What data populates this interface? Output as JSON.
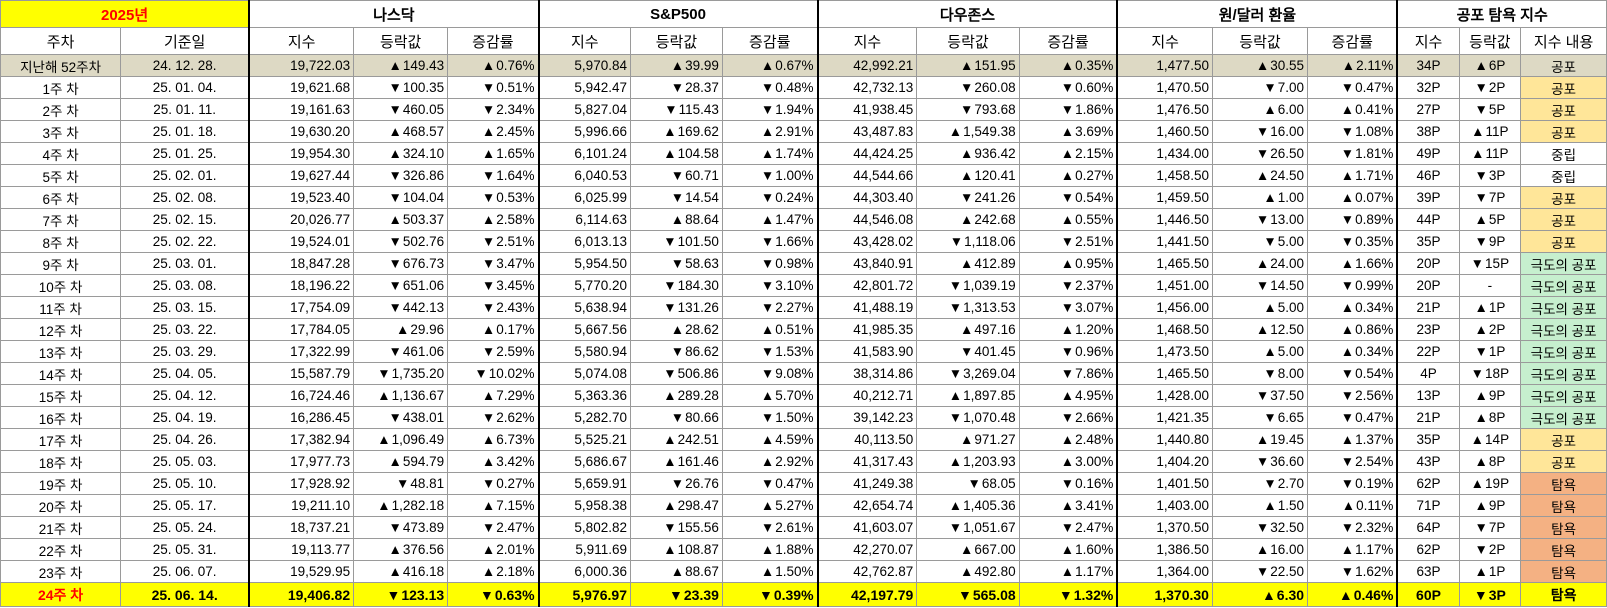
{
  "year_label": "2025년",
  "groups": [
    "나스닥",
    "S&P500",
    "다우존스",
    "원/달러 환율",
    "공포 탐욕 지수"
  ],
  "headers": {
    "week": "주차",
    "date": "기준일",
    "index": "지수",
    "change": "등락값",
    "rate": "증감률",
    "fg_index": "지수",
    "fg_change": "등락값",
    "fg_desc": "지수 내용"
  },
  "colors": {
    "up": "#ff0000",
    "down": "#0000ff",
    "highlight": "#ffff00",
    "prev_row": "#ddd9c4"
  },
  "rows": [
    {
      "week": "지난해 52주차",
      "date": "24. 12. 28.",
      "kind": "prev",
      "nasdaq": {
        "idx": "19,722.03",
        "chg": "149.43",
        "rate": "0.76%",
        "dir": "up"
      },
      "sp": {
        "idx": "5,970.84",
        "chg": "39.99",
        "rate": "0.67%",
        "dir": "up"
      },
      "dow": {
        "idx": "42,992.21",
        "chg": "151.95",
        "rate": "0.35%",
        "dir": "up"
      },
      "krw": {
        "idx": "1,477.50",
        "chg": "30.55",
        "rate": "2.11%",
        "dir": "up"
      },
      "fg": {
        "idx": "34P",
        "chg": "6P",
        "dir": "up",
        "desc": "공포",
        "mood": "fear"
      }
    },
    {
      "week": "1주 차",
      "date": "25. 01. 04.",
      "nasdaq": {
        "idx": "19,621.68",
        "chg": "100.35",
        "rate": "0.51%",
        "dir": "dn"
      },
      "sp": {
        "idx": "5,942.47",
        "chg": "28.37",
        "rate": "0.48%",
        "dir": "dn"
      },
      "dow": {
        "idx": "42,732.13",
        "chg": "260.08",
        "rate": "0.60%",
        "dir": "dn"
      },
      "krw": {
        "idx": "1,470.50",
        "chg": "7.00",
        "rate": "0.47%",
        "dir": "dn"
      },
      "fg": {
        "idx": "32P",
        "chg": "2P",
        "dir": "dn",
        "desc": "공포",
        "mood": "fear"
      }
    },
    {
      "week": "2주 차",
      "date": "25. 01. 11.",
      "nasdaq": {
        "idx": "19,161.63",
        "chg": "460.05",
        "rate": "2.34%",
        "dir": "dn"
      },
      "sp": {
        "idx": "5,827.04",
        "chg": "115.43",
        "rate": "1.94%",
        "dir": "dn"
      },
      "dow": {
        "idx": "41,938.45",
        "chg": "793.68",
        "rate": "1.86%",
        "dir": "dn"
      },
      "krw": {
        "idx": "1,476.50",
        "chg": "6.00",
        "rate": "0.41%",
        "dir": "up"
      },
      "fg": {
        "idx": "27P",
        "chg": "5P",
        "dir": "dn",
        "desc": "공포",
        "mood": "fear"
      }
    },
    {
      "week": "3주 차",
      "date": "25. 01. 18.",
      "nasdaq": {
        "idx": "19,630.20",
        "chg": "468.57",
        "rate": "2.45%",
        "dir": "up"
      },
      "sp": {
        "idx": "5,996.66",
        "chg": "169.62",
        "rate": "2.91%",
        "dir": "up"
      },
      "dow": {
        "idx": "43,487.83",
        "chg": "1,549.38",
        "rate": "3.69%",
        "dir": "up"
      },
      "krw": {
        "idx": "1,460.50",
        "chg": "16.00",
        "rate": "1.08%",
        "dir": "dn"
      },
      "fg": {
        "idx": "38P",
        "chg": "11P",
        "dir": "up",
        "desc": "공포",
        "mood": "fear"
      }
    },
    {
      "week": "4주 차",
      "date": "25. 01. 25.",
      "nasdaq": {
        "idx": "19,954.30",
        "chg": "324.10",
        "rate": "1.65%",
        "dir": "up"
      },
      "sp": {
        "idx": "6,101.24",
        "chg": "104.58",
        "rate": "1.74%",
        "dir": "up"
      },
      "dow": {
        "idx": "44,424.25",
        "chg": "936.42",
        "rate": "2.15%",
        "dir": "up"
      },
      "krw": {
        "idx": "1,434.00",
        "chg": "26.50",
        "rate": "1.81%",
        "dir": "dn"
      },
      "fg": {
        "idx": "49P",
        "chg": "11P",
        "dir": "up",
        "desc": "중립",
        "mood": "neutral"
      }
    },
    {
      "week": "5주 차",
      "date": "25. 02. 01.",
      "nasdaq": {
        "idx": "19,627.44",
        "chg": "326.86",
        "rate": "1.64%",
        "dir": "dn"
      },
      "sp": {
        "idx": "6,040.53",
        "chg": "60.71",
        "rate": "1.00%",
        "dir": "dn"
      },
      "dow": {
        "idx": "44,544.66",
        "chg": "120.41",
        "rate": "0.27%",
        "dir": "up"
      },
      "krw": {
        "idx": "1,458.50",
        "chg": "24.50",
        "rate": "1.71%",
        "dir": "up"
      },
      "fg": {
        "idx": "46P",
        "chg": "3P",
        "dir": "dn",
        "desc": "중립",
        "mood": "neutral"
      }
    },
    {
      "week": "6주 차",
      "date": "25. 02. 08.",
      "nasdaq": {
        "idx": "19,523.40",
        "chg": "104.04",
        "rate": "0.53%",
        "dir": "dn"
      },
      "sp": {
        "idx": "6,025.99",
        "chg": "14.54",
        "rate": "0.24%",
        "dir": "dn"
      },
      "dow": {
        "idx": "44,303.40",
        "chg": "241.26",
        "rate": "0.54%",
        "dir": "dn"
      },
      "krw": {
        "idx": "1,459.50",
        "chg": "1.00",
        "rate": "0.07%",
        "dir": "up"
      },
      "fg": {
        "idx": "39P",
        "chg": "7P",
        "dir": "dn",
        "desc": "공포",
        "mood": "fear"
      }
    },
    {
      "week": "7주 차",
      "date": "25. 02. 15.",
      "nasdaq": {
        "idx": "20,026.77",
        "chg": "503.37",
        "rate": "2.58%",
        "dir": "up"
      },
      "sp": {
        "idx": "6,114.63",
        "chg": "88.64",
        "rate": "1.47%",
        "dir": "up"
      },
      "dow": {
        "idx": "44,546.08",
        "chg": "242.68",
        "rate": "0.55%",
        "dir": "up"
      },
      "krw": {
        "idx": "1,446.50",
        "chg": "13.00",
        "rate": "0.89%",
        "dir": "dn"
      },
      "fg": {
        "idx": "44P",
        "chg": "5P",
        "dir": "up",
        "desc": "공포",
        "mood": "fear"
      }
    },
    {
      "week": "8주 차",
      "date": "25. 02. 22.",
      "nasdaq": {
        "idx": "19,524.01",
        "chg": "502.76",
        "rate": "2.51%",
        "dir": "dn"
      },
      "sp": {
        "idx": "6,013.13",
        "chg": "101.50",
        "rate": "1.66%",
        "dir": "dn"
      },
      "dow": {
        "idx": "43,428.02",
        "chg": "1,118.06",
        "rate": "2.51%",
        "dir": "dn"
      },
      "krw": {
        "idx": "1,441.50",
        "chg": "5.00",
        "rate": "0.35%",
        "dir": "dn"
      },
      "fg": {
        "idx": "35P",
        "chg": "9P",
        "dir": "dn",
        "desc": "공포",
        "mood": "fear"
      }
    },
    {
      "week": "9주 차",
      "date": "25. 03. 01.",
      "nasdaq": {
        "idx": "18,847.28",
        "chg": "676.73",
        "rate": "3.47%",
        "dir": "dn"
      },
      "sp": {
        "idx": "5,954.50",
        "chg": "58.63",
        "rate": "0.98%",
        "dir": "dn"
      },
      "dow": {
        "idx": "43,840.91",
        "chg": "412.89",
        "rate": "0.95%",
        "dir": "up"
      },
      "krw": {
        "idx": "1,465.50",
        "chg": "24.00",
        "rate": "1.66%",
        "dir": "up"
      },
      "fg": {
        "idx": "20P",
        "chg": "15P",
        "dir": "dn",
        "desc": "극도의 공포",
        "mood": "xfear"
      }
    },
    {
      "week": "10주 차",
      "date": "25. 03. 08.",
      "nasdaq": {
        "idx": "18,196.22",
        "chg": "651.06",
        "rate": "3.45%",
        "dir": "dn"
      },
      "sp": {
        "idx": "5,770.20",
        "chg": "184.30",
        "rate": "3.10%",
        "dir": "dn"
      },
      "dow": {
        "idx": "42,801.72",
        "chg": "1,039.19",
        "rate": "2.37%",
        "dir": "dn"
      },
      "krw": {
        "idx": "1,451.00",
        "chg": "14.50",
        "rate": "0.99%",
        "dir": "dn"
      },
      "fg": {
        "idx": "20P",
        "chg": "-",
        "dir": "none",
        "desc": "극도의 공포",
        "mood": "xfear"
      }
    },
    {
      "week": "11주 차",
      "date": "25. 03. 15.",
      "nasdaq": {
        "idx": "17,754.09",
        "chg": "442.13",
        "rate": "2.43%",
        "dir": "dn"
      },
      "sp": {
        "idx": "5,638.94",
        "chg": "131.26",
        "rate": "2.27%",
        "dir": "dn"
      },
      "dow": {
        "idx": "41,488.19",
        "chg": "1,313.53",
        "rate": "3.07%",
        "dir": "dn"
      },
      "krw": {
        "idx": "1,456.00",
        "chg": "5.00",
        "rate": "0.34%",
        "dir": "up"
      },
      "fg": {
        "idx": "21P",
        "chg": "1P",
        "dir": "up",
        "desc": "극도의 공포",
        "mood": "xfear"
      }
    },
    {
      "week": "12주 차",
      "date": "25. 03. 22.",
      "nasdaq": {
        "idx": "17,784.05",
        "chg": "29.96",
        "rate": "0.17%",
        "dir": "up"
      },
      "sp": {
        "idx": "5,667.56",
        "chg": "28.62",
        "rate": "0.51%",
        "dir": "up"
      },
      "dow": {
        "idx": "41,985.35",
        "chg": "497.16",
        "rate": "1.20%",
        "dir": "up"
      },
      "krw": {
        "idx": "1,468.50",
        "chg": "12.50",
        "rate": "0.86%",
        "dir": "up"
      },
      "fg": {
        "idx": "23P",
        "chg": "2P",
        "dir": "up",
        "desc": "극도의 공포",
        "mood": "xfear"
      }
    },
    {
      "week": "13주 차",
      "date": "25. 03. 29.",
      "nasdaq": {
        "idx": "17,322.99",
        "chg": "461.06",
        "rate": "2.59%",
        "dir": "dn"
      },
      "sp": {
        "idx": "5,580.94",
        "chg": "86.62",
        "rate": "1.53%",
        "dir": "dn"
      },
      "dow": {
        "idx": "41,583.90",
        "chg": "401.45",
        "rate": "0.96%",
        "dir": "dn"
      },
      "krw": {
        "idx": "1,473.50",
        "chg": "5.00",
        "rate": "0.34%",
        "dir": "up"
      },
      "fg": {
        "idx": "22P",
        "chg": "1P",
        "dir": "dn",
        "desc": "극도의 공포",
        "mood": "xfear"
      }
    },
    {
      "week": "14주 차",
      "date": "25. 04. 05.",
      "nasdaq": {
        "idx": "15,587.79",
        "chg": "1,735.20",
        "rate": "10.02%",
        "dir": "dn"
      },
      "sp": {
        "idx": "5,074.08",
        "chg": "506.86",
        "rate": "9.08%",
        "dir": "dn"
      },
      "dow": {
        "idx": "38,314.86",
        "chg": "3,269.04",
        "rate": "7.86%",
        "dir": "dn"
      },
      "krw": {
        "idx": "1,465.50",
        "chg": "8.00",
        "rate": "0.54%",
        "dir": "dn"
      },
      "fg": {
        "idx": "4P",
        "chg": "18P",
        "dir": "dn",
        "desc": "극도의 공포",
        "mood": "xfear"
      }
    },
    {
      "week": "15주 차",
      "date": "25. 04. 12.",
      "nasdaq": {
        "idx": "16,724.46",
        "chg": "1,136.67",
        "rate": "7.29%",
        "dir": "up"
      },
      "sp": {
        "idx": "5,363.36",
        "chg": "289.28",
        "rate": "5.70%",
        "dir": "up"
      },
      "dow": {
        "idx": "40,212.71",
        "chg": "1,897.85",
        "rate": "4.95%",
        "dir": "up"
      },
      "krw": {
        "idx": "1,428.00",
        "chg": "37.50",
        "rate": "2.56%",
        "dir": "dn"
      },
      "fg": {
        "idx": "13P",
        "chg": "9P",
        "dir": "up",
        "desc": "극도의 공포",
        "mood": "xfear"
      }
    },
    {
      "week": "16주 차",
      "date": "25. 04. 19.",
      "nasdaq": {
        "idx": "16,286.45",
        "chg": "438.01",
        "rate": "2.62%",
        "dir": "dn"
      },
      "sp": {
        "idx": "5,282.70",
        "chg": "80.66",
        "rate": "1.50%",
        "dir": "dn"
      },
      "dow": {
        "idx": "39,142.23",
        "chg": "1,070.48",
        "rate": "2.66%",
        "dir": "dn"
      },
      "krw": {
        "idx": "1,421.35",
        "chg": "6.65",
        "rate": "0.47%",
        "dir": "dn"
      },
      "fg": {
        "idx": "21P",
        "chg": "8P",
        "dir": "up",
        "desc": "극도의 공포",
        "mood": "xfear"
      }
    },
    {
      "week": "17주 차",
      "date": "25. 04. 26.",
      "nasdaq": {
        "idx": "17,382.94",
        "chg": "1,096.49",
        "rate": "6.73%",
        "dir": "up"
      },
      "sp": {
        "idx": "5,525.21",
        "chg": "242.51",
        "rate": "4.59%",
        "dir": "up"
      },
      "dow": {
        "idx": "40,113.50",
        "chg": "971.27",
        "rate": "2.48%",
        "dir": "up"
      },
      "krw": {
        "idx": "1,440.80",
        "chg": "19.45",
        "rate": "1.37%",
        "dir": "up"
      },
      "fg": {
        "idx": "35P",
        "chg": "14P",
        "dir": "up",
        "desc": "공포",
        "mood": "fear"
      }
    },
    {
      "week": "18주 차",
      "date": "25. 05. 03.",
      "nasdaq": {
        "idx": "17,977.73",
        "chg": "594.79",
        "rate": "3.42%",
        "dir": "up"
      },
      "sp": {
        "idx": "5,686.67",
        "chg": "161.46",
        "rate": "2.92%",
        "dir": "up"
      },
      "dow": {
        "idx": "41,317.43",
        "chg": "1,203.93",
        "rate": "3.00%",
        "dir": "up"
      },
      "krw": {
        "idx": "1,404.20",
        "chg": "36.60",
        "rate": "2.54%",
        "dir": "dn"
      },
      "fg": {
        "idx": "43P",
        "chg": "8P",
        "dir": "up",
        "desc": "공포",
        "mood": "fear"
      }
    },
    {
      "week": "19주 차",
      "date": "25. 05. 10.",
      "nasdaq": {
        "idx": "17,928.92",
        "chg": "48.81",
        "rate": "0.27%",
        "dir": "dn"
      },
      "sp": {
        "idx": "5,659.91",
        "chg": "26.76",
        "rate": "0.47%",
        "dir": "dn"
      },
      "dow": {
        "idx": "41,249.38",
        "chg": "68.05",
        "rate": "0.16%",
        "dir": "dn"
      },
      "krw": {
        "idx": "1,401.50",
        "chg": "2.70",
        "rate": "0.19%",
        "dir": "dn"
      },
      "fg": {
        "idx": "62P",
        "chg": "19P",
        "dir": "up",
        "desc": "탐욕",
        "mood": "greed"
      }
    },
    {
      "week": "20주 차",
      "date": "25. 05. 17.",
      "nasdaq": {
        "idx": "19,211.10",
        "chg": "1,282.18",
        "rate": "7.15%",
        "dir": "up"
      },
      "sp": {
        "idx": "5,958.38",
        "chg": "298.47",
        "rate": "5.27%",
        "dir": "up"
      },
      "dow": {
        "idx": "42,654.74",
        "chg": "1,405.36",
        "rate": "3.41%",
        "dir": "up"
      },
      "krw": {
        "idx": "1,403.00",
        "chg": "1.50",
        "rate": "0.11%",
        "dir": "up"
      },
      "fg": {
        "idx": "71P",
        "chg": "9P",
        "dir": "up",
        "desc": "탐욕",
        "mood": "greed"
      }
    },
    {
      "week": "21주 차",
      "date": "25. 05. 24.",
      "nasdaq": {
        "idx": "18,737.21",
        "chg": "473.89",
        "rate": "2.47%",
        "dir": "dn"
      },
      "sp": {
        "idx": "5,802.82",
        "chg": "155.56",
        "rate": "2.61%",
        "dir": "dn"
      },
      "dow": {
        "idx": "41,603.07",
        "chg": "1,051.67",
        "rate": "2.47%",
        "dir": "dn"
      },
      "krw": {
        "idx": "1,370.50",
        "chg": "32.50",
        "rate": "2.32%",
        "dir": "dn"
      },
      "fg": {
        "idx": "64P",
        "chg": "7P",
        "dir": "dn",
        "desc": "탐욕",
        "mood": "greed"
      }
    },
    {
      "week": "22주 차",
      "date": "25. 05. 31.",
      "nasdaq": {
        "idx": "19,113.77",
        "chg": "376.56",
        "rate": "2.01%",
        "dir": "up"
      },
      "sp": {
        "idx": "5,911.69",
        "chg": "108.87",
        "rate": "1.88%",
        "dir": "up"
      },
      "dow": {
        "idx": "42,270.07",
        "chg": "667.00",
        "rate": "1.60%",
        "dir": "up"
      },
      "krw": {
        "idx": "1,386.50",
        "chg": "16.00",
        "rate": "1.17%",
        "dir": "up"
      },
      "fg": {
        "idx": "62P",
        "chg": "2P",
        "dir": "dn",
        "desc": "탐욕",
        "mood": "greed"
      }
    },
    {
      "week": "23주 차",
      "date": "25. 06. 07.",
      "nasdaq": {
        "idx": "19,529.95",
        "chg": "416.18",
        "rate": "2.18%",
        "dir": "up"
      },
      "sp": {
        "idx": "6,000.36",
        "chg": "88.67",
        "rate": "1.50%",
        "dir": "up"
      },
      "dow": {
        "idx": "42,762.87",
        "chg": "492.80",
        "rate": "1.17%",
        "dir": "up"
      },
      "krw": {
        "idx": "1,364.00",
        "chg": "22.50",
        "rate": "1.62%",
        "dir": "dn"
      },
      "fg": {
        "idx": "63P",
        "chg": "1P",
        "dir": "up",
        "desc": "탐욕",
        "mood": "greed"
      }
    },
    {
      "week": "24주 차",
      "date": "25. 06. 14.",
      "kind": "cur",
      "nasdaq": {
        "idx": "19,406.82",
        "chg": "123.13",
        "rate": "0.63%",
        "dir": "dn"
      },
      "sp": {
        "idx": "5,976.97",
        "chg": "23.39",
        "rate": "0.39%",
        "dir": "dn"
      },
      "dow": {
        "idx": "42,197.79",
        "chg": "565.08",
        "rate": "1.32%",
        "dir": "dn"
      },
      "krw": {
        "idx": "1,370.30",
        "chg": "6.30",
        "rate": "0.46%",
        "dir": "up"
      },
      "fg": {
        "idx": "60P",
        "chg": "3P",
        "dir": "dn",
        "desc": "탐욕",
        "mood": "greed"
      }
    }
  ]
}
